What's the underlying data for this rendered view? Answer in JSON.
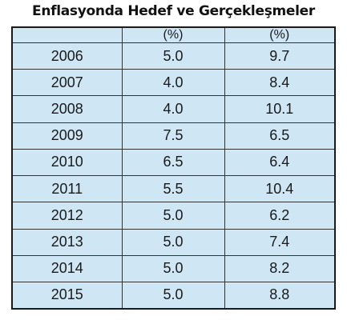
{
  "chart_data": {
    "type": "table",
    "title": "Enflasyonda Hedef ve Gerçekleşmeler",
    "columns": [
      "",
      "(%)",
      "(%)"
    ],
    "rows": [
      {
        "year": "2006",
        "hedef": "5.0",
        "gerceklesme": "9.7"
      },
      {
        "year": "2007",
        "hedef": "4.0",
        "gerceklesme": "8.4"
      },
      {
        "year": "2008",
        "hedef": "4.0",
        "gerceklesme": "10.1"
      },
      {
        "year": "2009",
        "hedef": "7.5",
        "gerceklesme": "6.5"
      },
      {
        "year": "2010",
        "hedef": "6.5",
        "gerceklesme": "6.4"
      },
      {
        "year": "2011",
        "hedef": "5.5",
        "gerceklesme": "10.4"
      },
      {
        "year": "2012",
        "hedef": "5.0",
        "gerceklesme": "6.2"
      },
      {
        "year": "2013",
        "hedef": "5.0",
        "gerceklesme": "7.4"
      },
      {
        "year": "2014",
        "hedef": "5.0",
        "gerceklesme": "8.2"
      },
      {
        "year": "2015",
        "hedef": "5.0",
        "gerceklesme": "8.8"
      }
    ]
  },
  "colors": {
    "table_background": "#cfe6f5",
    "border": "#1a1a1a",
    "text": "#1a1a1a"
  }
}
